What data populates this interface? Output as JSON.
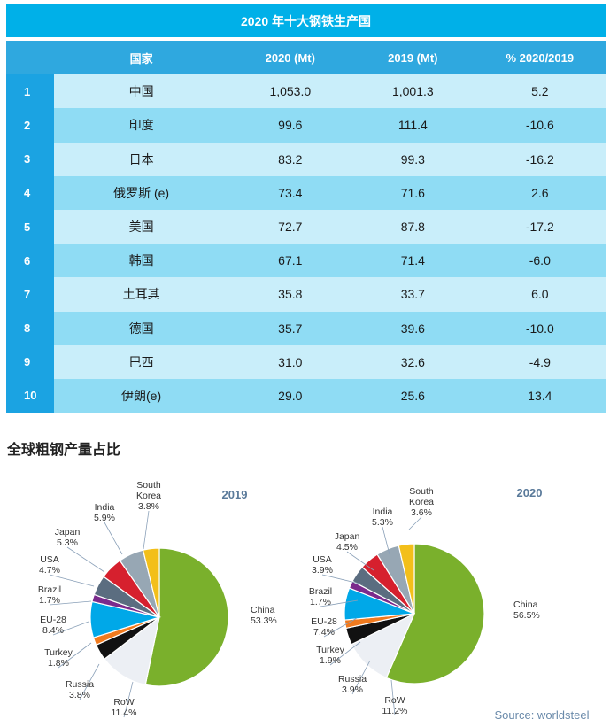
{
  "table": {
    "title": "2020 年十大钢铁生产国",
    "headers": [
      "国家",
      "2020 (Mt)",
      "2019 (Mt)",
      "% 2020/2019"
    ],
    "rows": [
      {
        "rank": "1",
        "country": "中国",
        "y2020": "1,053.0",
        "y2019": "1,001.3",
        "pct": "5.2"
      },
      {
        "rank": "2",
        "country": "印度",
        "y2020": "99.6",
        "y2019": "111.4",
        "pct": "-10.6"
      },
      {
        "rank": "3",
        "country": "日本",
        "y2020": "83.2",
        "y2019": "99.3",
        "pct": "-16.2"
      },
      {
        "rank": "4",
        "country": "俄罗斯 (e)",
        "y2020": "73.4",
        "y2019": "71.6",
        "pct": "2.6"
      },
      {
        "rank": "5",
        "country": "美国",
        "y2020": "72.7",
        "y2019": "87.8",
        "pct": "-17.2"
      },
      {
        "rank": "6",
        "country": "韩国",
        "y2020": "67.1",
        "y2019": "71.4",
        "pct": "-6.0"
      },
      {
        "rank": "7",
        "country": "土耳其",
        "y2020": "35.8",
        "y2019": "33.7",
        "pct": "6.0"
      },
      {
        "rank": "8",
        "country": "德国",
        "y2020": "35.7",
        "y2019": "39.6",
        "pct": "-10.0"
      },
      {
        "rank": "9",
        "country": "巴西",
        "y2020": "31.0",
        "y2019": "32.6",
        "pct": "-4.9"
      },
      {
        "rank": "10",
        "country": "伊朗(e)",
        "y2020": "29.0",
        "y2019": "25.6",
        "pct": "13.4"
      }
    ]
  },
  "section_title": "全球粗钢产量占比",
  "source": "Source: worldsteel",
  "colors": {
    "China": "#7ab02c",
    "RoW": "#eceff4",
    "Russia": "#111111",
    "Turkey": "#f07a1e",
    "EU-28": "#00a8e8",
    "Brazil": "#7b2a8c",
    "USA": "#5b6d80",
    "Japan": "#d6202e",
    "India": "#97a7b4",
    "South Korea": "#f3bf1a"
  },
  "chart_data": [
    {
      "type": "pie",
      "title": "2019",
      "slices": [
        {
          "label": "China",
          "value": 53.3,
          "pct_label": "53.3%"
        },
        {
          "label": "RoW",
          "value": 11.4,
          "pct_label": "11.4%"
        },
        {
          "label": "Russia",
          "value": 3.8,
          "pct_label": "3.8%"
        },
        {
          "label": "Turkey",
          "value": 1.8,
          "pct_label": "1.8%"
        },
        {
          "label": "EU-28",
          "value": 8.4,
          "pct_label": "8.4%"
        },
        {
          "label": "Brazil",
          "value": 1.7,
          "pct_label": "1.7%"
        },
        {
          "label": "USA",
          "value": 4.7,
          "pct_label": "4.7%"
        },
        {
          "label": "Japan",
          "value": 5.3,
          "pct_label": "5.3%"
        },
        {
          "label": "India",
          "value": 5.9,
          "pct_label": "5.9%"
        },
        {
          "label": "South Korea",
          "value": 3.8,
          "pct_label": "3.8%"
        }
      ]
    },
    {
      "type": "pie",
      "title": "2020",
      "slices": [
        {
          "label": "China",
          "value": 56.5,
          "pct_label": "56.5%"
        },
        {
          "label": "RoW",
          "value": 11.2,
          "pct_label": "11.2%"
        },
        {
          "label": "Russia",
          "value": 3.9,
          "pct_label": "3.9%"
        },
        {
          "label": "Turkey",
          "value": 1.9,
          "pct_label": "1.9%"
        },
        {
          "label": "EU-28",
          "value": 7.4,
          "pct_label": "7.4%"
        },
        {
          "label": "Brazil",
          "value": 1.7,
          "pct_label": "1.7%"
        },
        {
          "label": "USA",
          "value": 3.9,
          "pct_label": "3.9%"
        },
        {
          "label": "Japan",
          "value": 4.5,
          "pct_label": "4.5%"
        },
        {
          "label": "India",
          "value": 5.3,
          "pct_label": "5.3%"
        },
        {
          "label": "South Korea",
          "value": 3.6,
          "pct_label": "3.6%"
        }
      ]
    }
  ]
}
